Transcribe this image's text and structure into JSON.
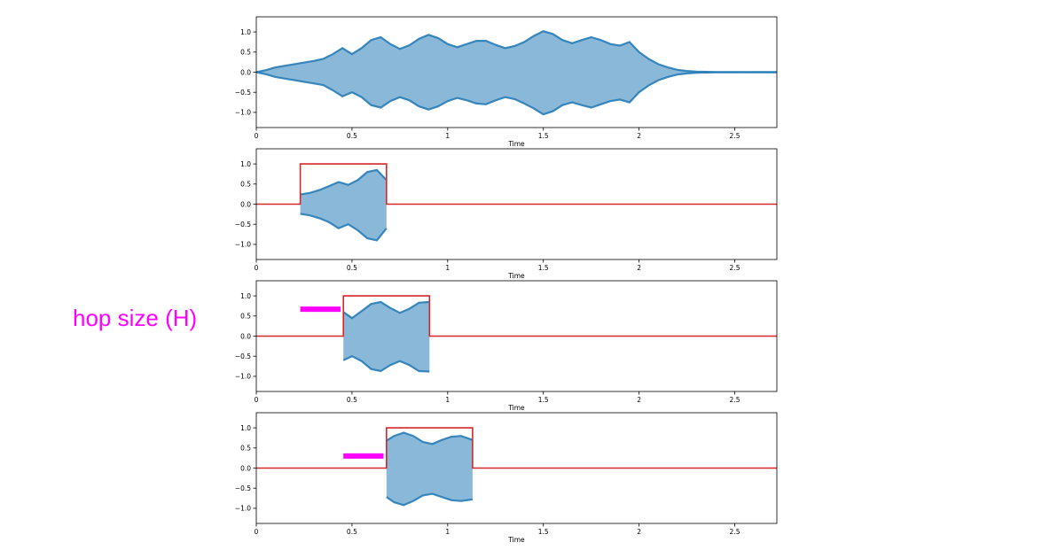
{
  "annotation": {
    "text": "hop size (H)",
    "color": "#ff00ff"
  },
  "colors": {
    "waveform": "#1f77b4",
    "window": "#d62728",
    "hop_marker": "#ff00ff",
    "axes": "#000000"
  },
  "chart_data": [
    {
      "type": "area",
      "panel": "full-waveform",
      "xlabel": "Time",
      "xlim": [
        0,
        2.72
      ],
      "ylim": [
        -1.2,
        1.2
      ],
      "xticks": [
        0,
        0.5,
        1,
        1.5,
        2,
        2.5
      ],
      "xtick_labels": [
        "0",
        "0.5",
        "1",
        "1.5",
        "2",
        "2.5"
      ],
      "yticks": [
        1.0,
        0.5,
        0.0,
        -0.5,
        -1.0
      ],
      "ytick_labels": [
        "1.0",
        "0.5",
        "0.0",
        "−0.5",
        "−1.0"
      ],
      "series": [
        {
          "kind": "envelope",
          "x": [
            0,
            0.05,
            0.1,
            0.15,
            0.2,
            0.25,
            0.3,
            0.35,
            0.4,
            0.45,
            0.5,
            0.55,
            0.6,
            0.65,
            0.7,
            0.75,
            0.8,
            0.85,
            0.9,
            0.95,
            1.0,
            1.05,
            1.1,
            1.15,
            1.2,
            1.25,
            1.3,
            1.35,
            1.4,
            1.45,
            1.5,
            1.55,
            1.6,
            1.65,
            1.7,
            1.75,
            1.8,
            1.85,
            1.9,
            1.95,
            2.0,
            2.05,
            2.1,
            2.15,
            2.2,
            2.25,
            2.3,
            2.35,
            2.4,
            2.5,
            2.6,
            2.72
          ],
          "upper": [
            0.0,
            0.05,
            0.12,
            0.16,
            0.2,
            0.24,
            0.28,
            0.33,
            0.45,
            0.6,
            0.45,
            0.6,
            0.8,
            0.87,
            0.7,
            0.58,
            0.67,
            0.83,
            0.93,
            0.85,
            0.7,
            0.62,
            0.7,
            0.78,
            0.78,
            0.68,
            0.6,
            0.65,
            0.75,
            0.9,
            1.02,
            0.95,
            0.8,
            0.72,
            0.8,
            0.87,
            0.8,
            0.7,
            0.66,
            0.75,
            0.5,
            0.33,
            0.2,
            0.12,
            0.06,
            0.03,
            0.015,
            0.008,
            0.004,
            0.002,
            0.001,
            0.0
          ],
          "lower": [
            0.0,
            -0.05,
            -0.12,
            -0.16,
            -0.2,
            -0.24,
            -0.28,
            -0.32,
            -0.45,
            -0.6,
            -0.5,
            -0.62,
            -0.82,
            -0.88,
            -0.72,
            -0.62,
            -0.7,
            -0.85,
            -0.93,
            -0.85,
            -0.72,
            -0.64,
            -0.7,
            -0.78,
            -0.8,
            -0.7,
            -0.62,
            -0.67,
            -0.78,
            -0.9,
            -1.05,
            -0.97,
            -0.82,
            -0.75,
            -0.82,
            -0.88,
            -0.8,
            -0.72,
            -0.68,
            -0.75,
            -0.5,
            -0.33,
            -0.2,
            -0.12,
            -0.06,
            -0.03,
            -0.015,
            -0.008,
            -0.004,
            -0.002,
            -0.001,
            0.0
          ]
        }
      ]
    },
    {
      "type": "area",
      "panel": "frame-1",
      "xlabel": "Time",
      "xlim": [
        0,
        2.72
      ],
      "ylim": [
        -1.2,
        1.2
      ],
      "xticks": [
        0,
        0.5,
        1,
        1.5,
        2,
        2.5
      ],
      "xtick_labels": [
        "0",
        "0.5",
        "1",
        "1.5",
        "2",
        "2.5"
      ],
      "yticks": [
        1.0,
        0.5,
        0.0,
        -0.5,
        -1.0
      ],
      "ytick_labels": [
        "1.0",
        "0.5",
        "0.0",
        "−0.5",
        "−1.0"
      ],
      "window": {
        "start": 0.23,
        "end": 0.68,
        "height": 1.0
      },
      "series": [
        {
          "kind": "envelope",
          "x": [
            0.23,
            0.28,
            0.33,
            0.38,
            0.43,
            0.48,
            0.53,
            0.58,
            0.63,
            0.68
          ],
          "upper": [
            0.24,
            0.28,
            0.35,
            0.45,
            0.55,
            0.48,
            0.6,
            0.8,
            0.85,
            0.6
          ],
          "lower": [
            -0.24,
            -0.28,
            -0.35,
            -0.45,
            -0.6,
            -0.5,
            -0.65,
            -0.85,
            -0.9,
            -0.6
          ]
        }
      ]
    },
    {
      "type": "area",
      "panel": "frame-2",
      "xlabel": "Time",
      "xlim": [
        0,
        2.72
      ],
      "ylim": [
        -1.2,
        1.2
      ],
      "xticks": [
        0,
        0.5,
        1,
        1.5,
        2,
        2.5
      ],
      "xtick_labels": [
        "0",
        "0.5",
        "1",
        "1.5",
        "2",
        "2.5"
      ],
      "yticks": [
        1.0,
        0.5,
        0.0,
        -0.5,
        -1.0
      ],
      "ytick_labels": [
        "1.0",
        "0.5",
        "0.0",
        "−0.5",
        "−1.0"
      ],
      "window": {
        "start": 0.455,
        "end": 0.905,
        "height": 1.0
      },
      "hop_marker": {
        "start": 0.23,
        "end": 0.44,
        "y": 0.67
      },
      "series": [
        {
          "kind": "envelope",
          "x": [
            0.455,
            0.5,
            0.55,
            0.6,
            0.65,
            0.7,
            0.75,
            0.8,
            0.85,
            0.905
          ],
          "upper": [
            0.6,
            0.45,
            0.62,
            0.8,
            0.85,
            0.7,
            0.58,
            0.68,
            0.83,
            0.85
          ],
          "lower": [
            -0.6,
            -0.5,
            -0.62,
            -0.82,
            -0.87,
            -0.72,
            -0.62,
            -0.72,
            -0.87,
            -0.88
          ]
        }
      ]
    },
    {
      "type": "area",
      "panel": "frame-3",
      "xlabel": "Time",
      "xlim": [
        0,
        2.72
      ],
      "ylim": [
        -1.2,
        1.2
      ],
      "xticks": [
        0,
        0.5,
        1,
        1.5,
        2,
        2.5
      ],
      "xtick_labels": [
        "0",
        "0.5",
        "1",
        "1.5",
        "2",
        "2.5"
      ],
      "yticks": [
        1.0,
        0.5,
        0.0,
        -0.5,
        -1.0
      ],
      "ytick_labels": [
        "1.0",
        "0.5",
        "0.0",
        "−0.5",
        "−1.0"
      ],
      "window": {
        "start": 0.68,
        "end": 1.13,
        "height": 1.0
      },
      "hop_marker": {
        "start": 0.455,
        "end": 0.665,
        "y": 0.3
      },
      "series": [
        {
          "kind": "envelope",
          "x": [
            0.68,
            0.72,
            0.77,
            0.82,
            0.87,
            0.92,
            0.97,
            1.02,
            1.07,
            1.13
          ],
          "upper": [
            0.68,
            0.8,
            0.88,
            0.8,
            0.65,
            0.6,
            0.7,
            0.78,
            0.8,
            0.7
          ],
          "lower": [
            -0.72,
            -0.85,
            -0.92,
            -0.82,
            -0.68,
            -0.64,
            -0.72,
            -0.8,
            -0.82,
            -0.78
          ]
        }
      ]
    }
  ]
}
